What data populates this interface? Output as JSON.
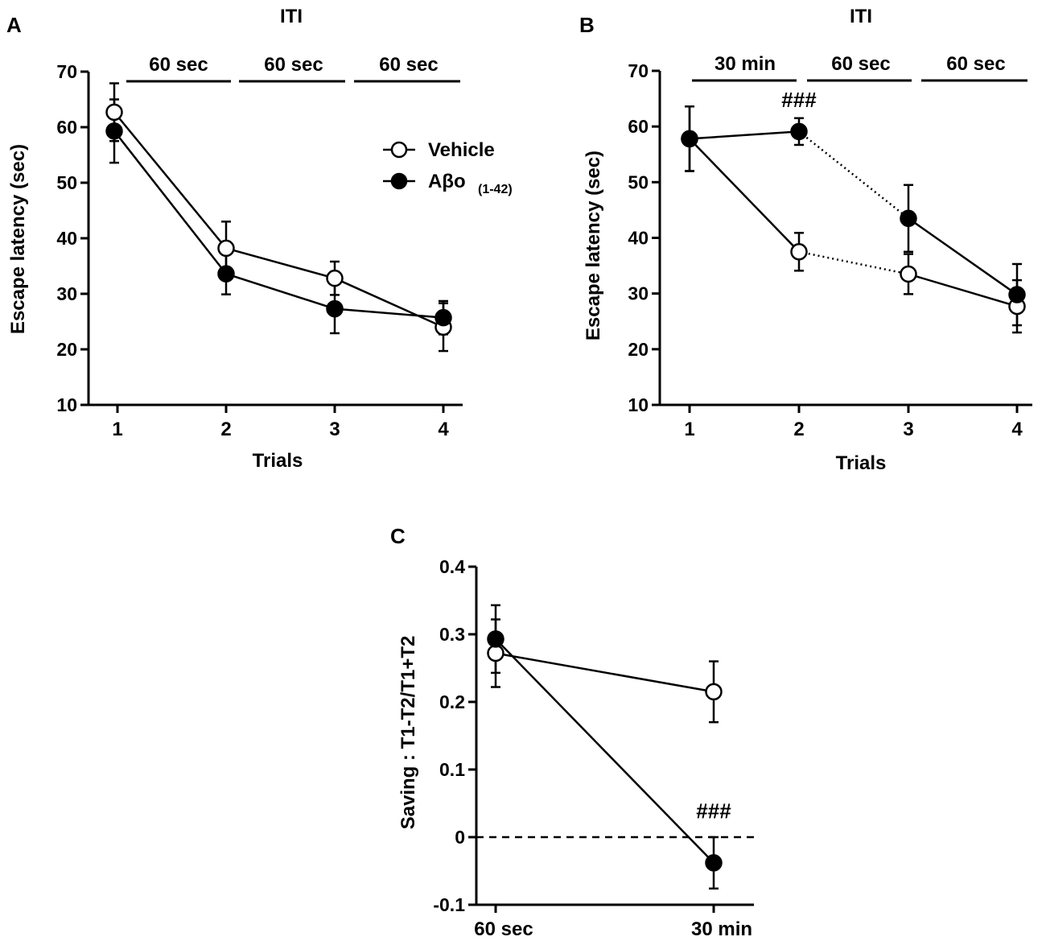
{
  "figure": {
    "series_names": [
      "Vehicle",
      "Aβo"
    ],
    "legend": {
      "vehicle_label": "Vehicle",
      "abo_label": "Aβo",
      "abo_subscript": "(1-42)"
    }
  },
  "chart_data": [
    {
      "panel": "A",
      "type": "line",
      "title": "ITI",
      "xlabel": "Trials",
      "ylabel": "Escape latency (sec)",
      "x": [
        1,
        2,
        3,
        4
      ],
      "x_tick_labels": [
        "1",
        "2",
        "3",
        "4"
      ],
      "ylim": [
        10,
        70
      ],
      "y_ticks": [
        10,
        20,
        30,
        40,
        50,
        60,
        70
      ],
      "iti_labels": [
        "60 sec",
        "60 sec",
        "60 sec"
      ],
      "series": [
        {
          "name": "Vehicle",
          "marker": "open-circle",
          "values": [
            62.7,
            38.2,
            32.8,
            24.0
          ],
          "errors": [
            5.2,
            4.8,
            3.0,
            4.3
          ],
          "segment_styles": [
            "solid",
            "solid",
            "solid"
          ]
        },
        {
          "name": "Aβo",
          "marker": "filled-circle",
          "values": [
            59.3,
            33.6,
            27.3,
            25.7
          ],
          "errors": [
            5.7,
            3.7,
            4.4,
            3.0
          ],
          "segment_styles": [
            "solid",
            "solid",
            "solid"
          ]
        }
      ],
      "legend_position": "top-right"
    },
    {
      "panel": "B",
      "type": "line",
      "title": "ITI",
      "xlabel": "Trials",
      "ylabel": "Escape latency (sec)",
      "x": [
        1,
        2,
        3,
        4
      ],
      "x_tick_labels": [
        "1",
        "2",
        "3",
        "4"
      ],
      "ylim": [
        10,
        70
      ],
      "y_ticks": [
        10,
        20,
        30,
        40,
        50,
        60,
        70
      ],
      "iti_labels": [
        "30 min",
        "60 sec",
        "60 sec"
      ],
      "annotations": [
        {
          "text": "###",
          "x": 2,
          "y": 63.5
        }
      ],
      "series": [
        {
          "name": "Vehicle",
          "marker": "open-circle",
          "values": [
            57.8,
            37.5,
            33.5,
            27.7
          ],
          "errors": [
            5.8,
            3.4,
            3.6,
            4.7
          ],
          "segment_styles": [
            "solid",
            "dotted",
            "solid"
          ]
        },
        {
          "name": "Aβo",
          "marker": "filled-circle",
          "values": [
            57.8,
            59.1,
            43.5,
            29.8
          ],
          "errors": [
            5.8,
            2.4,
            6.0,
            5.5
          ],
          "segment_styles": [
            "solid",
            "dotted",
            "solid"
          ]
        }
      ]
    },
    {
      "panel": "C",
      "type": "line",
      "xlabel": "",
      "ylabel": "Saving : T1-T2/T1+T2",
      "x_tick_labels": [
        "60 sec",
        "30 min"
      ],
      "ylim": [
        -0.1,
        0.4
      ],
      "y_ticks": [
        -0.1,
        0,
        0.1,
        0.2,
        0.3,
        0.4
      ],
      "y_tick_labels": [
        "-0.1",
        "0",
        "0.1",
        "0.2",
        "0.3",
        "0.4"
      ],
      "reference_line": {
        "y": 0,
        "style": "dashed"
      },
      "annotations": [
        {
          "text": "###",
          "x": "30 min",
          "y": 0.028
        }
      ],
      "series": [
        {
          "name": "Vehicle",
          "marker": "open-circle",
          "values": [
            0.272,
            0.215
          ],
          "errors": [
            0.05,
            0.045
          ]
        },
        {
          "name": "Aβo",
          "marker": "filled-circle",
          "values": [
            0.293,
            -0.038
          ],
          "errors": [
            0.05,
            0.038
          ]
        }
      ]
    }
  ]
}
